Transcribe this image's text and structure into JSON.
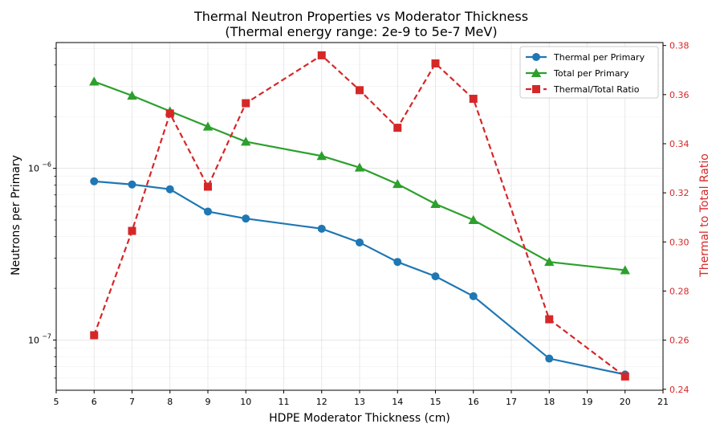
{
  "chart_data": {
    "type": "line",
    "title": "Thermal Neutron Properties vs Moderator Thickness",
    "subtitle": "(Thermal energy range: 2e-9 to 5e-7 MeV)",
    "xlabel": "HDPE Moderator Thickness (cm)",
    "ylabel": "Neutrons per Primary",
    "ylabel_right": "Thermal to Total Ratio",
    "x_range": [
      5,
      21
    ],
    "x_ticks": [
      5,
      6,
      7,
      8,
      9,
      10,
      11,
      12,
      13,
      14,
      15,
      16,
      17,
      18,
      19,
      20,
      21
    ],
    "y_left_scale": "log",
    "y_left_range": [
      5.1e-08,
      5.4e-06
    ],
    "y_left_major_ticks": [
      {
        "value": 1e-07,
        "label": "10"
      },
      {
        "value": 1e-06,
        "label": "10"
      }
    ],
    "y_left_major_exps": [
      "−7",
      "−6"
    ],
    "y_right_range": [
      0.2396,
      0.3812
    ],
    "y_right_ticks": [
      0.24,
      0.26,
      0.28,
      0.3,
      0.32,
      0.34,
      0.36,
      0.38
    ],
    "y_right_tick_labels": [
      "0.24",
      "0.26",
      "0.28",
      "0.30",
      "0.32",
      "0.34",
      "0.36",
      "0.38"
    ],
    "grid": true,
    "legend_position": "top-right",
    "series": [
      {
        "name": "Thermal per Primary",
        "axis": "left",
        "color": "#1f77b4",
        "marker": "circle",
        "dash": "solid",
        "x": [
          6,
          7,
          8,
          9,
          10,
          12,
          13,
          14,
          15,
          16,
          18,
          20
        ],
        "values": [
          8.4e-07,
          8.05e-07,
          7.55e-07,
          5.6e-07,
          5.1e-07,
          4.45e-07,
          3.7e-07,
          2.85e-07,
          2.35e-07,
          1.8e-07,
          7.8e-08,
          6.3e-08
        ]
      },
      {
        "name": "Total per Primary",
        "axis": "left",
        "color": "#2ca02c",
        "marker": "triangle",
        "dash": "solid",
        "x": [
          6,
          7,
          8,
          9,
          10,
          12,
          13,
          14,
          15,
          16,
          18,
          20
        ],
        "values": [
          3.2e-06,
          2.65e-06,
          2.15e-06,
          1.75e-06,
          1.43e-06,
          1.18e-06,
          1.01e-06,
          8.1e-07,
          6.2e-07,
          5e-07,
          2.85e-07,
          2.55e-07
        ]
      },
      {
        "name": "Thermal/Total Ratio",
        "axis": "right",
        "color": "#d62728",
        "marker": "square",
        "dash": "dashed",
        "x": [
          6,
          7,
          8,
          9,
          10,
          12,
          13,
          14,
          15,
          16,
          18,
          20
        ],
        "values": [
          0.262,
          0.3045,
          0.3523,
          0.3225,
          0.3565,
          0.376,
          0.3618,
          0.3465,
          0.3727,
          0.3583,
          0.2685,
          0.2452
        ]
      }
    ]
  }
}
